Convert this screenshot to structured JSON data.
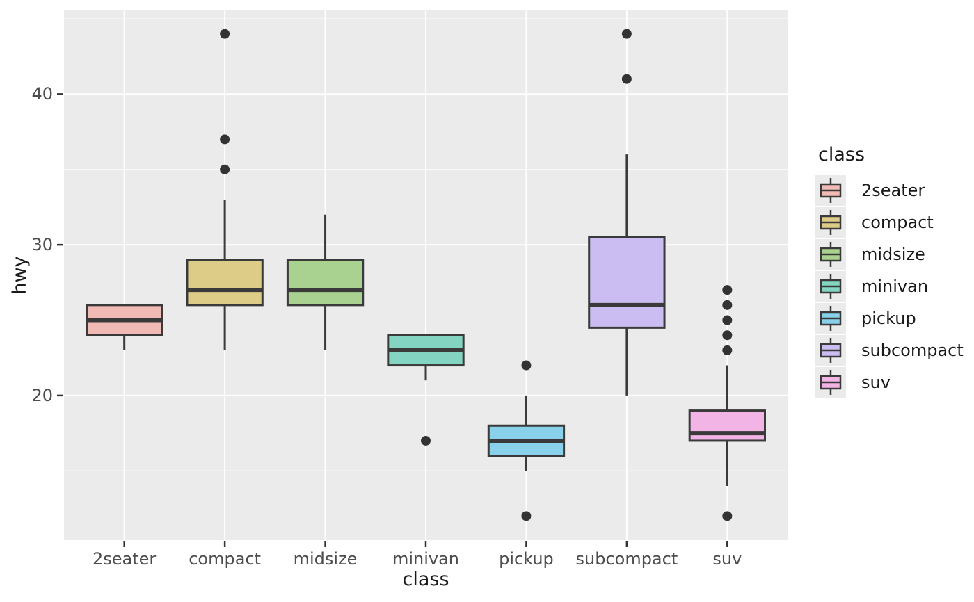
{
  "chart_data": {
    "type": "boxplot",
    "title": "",
    "xlabel": "class",
    "ylabel": "hwy",
    "categories": [
      "2seater",
      "compact",
      "midsize",
      "minivan",
      "pickup",
      "subcompact",
      "suv"
    ],
    "series": [
      {
        "name": "2seater",
        "fill": "#F2BAB4",
        "whisker_low": 23,
        "q1": 24,
        "median": 25,
        "q3": 26,
        "whisker_high": 26,
        "outliers": []
      },
      {
        "name": "compact",
        "fill": "#DCCC88",
        "whisker_low": 23,
        "q1": 26,
        "median": 27,
        "q3": 29,
        "whisker_high": 33,
        "outliers": [
          35,
          37,
          44
        ]
      },
      {
        "name": "midsize",
        "fill": "#A9D290",
        "whisker_low": 23,
        "q1": 26,
        "median": 27,
        "q3": 29,
        "whisker_high": 32,
        "outliers": []
      },
      {
        "name": "minivan",
        "fill": "#83D5C1",
        "whisker_low": 21,
        "q1": 22,
        "median": 23,
        "q3": 24,
        "whisker_high": 24,
        "outliers": [
          17
        ]
      },
      {
        "name": "pickup",
        "fill": "#89D1EB",
        "whisker_low": 15,
        "q1": 16,
        "median": 17,
        "q3": 18,
        "whisker_high": 20,
        "outliers": [
          22,
          12
        ]
      },
      {
        "name": "subcompact",
        "fill": "#CBBDF2",
        "whisker_low": 20,
        "q1": 24.5,
        "median": 26,
        "q3": 30.5,
        "whisker_high": 36,
        "outliers": [
          41,
          44
        ]
      },
      {
        "name": "suv",
        "fill": "#F2B4E4",
        "whisker_low": 14,
        "q1": 17,
        "median": 17.5,
        "q3": 19,
        "whisker_high": 22,
        "outliers": [
          27,
          26,
          25,
          24,
          23,
          12
        ]
      }
    ],
    "y_major_ticks": [
      20,
      30,
      40
    ],
    "y_major_tick_labels": [
      "20",
      "30",
      "40"
    ],
    "y_minor_gridlines": [
      15,
      25,
      35,
      45
    ],
    "ylim": [
      10.4,
      45.6
    ],
    "grid": "horizontal major+minor white, vertical major white at category centers",
    "legend": {
      "title": "class",
      "position": "right",
      "entries": [
        {
          "label": "2seater",
          "fill": "#F2BAB4"
        },
        {
          "label": "compact",
          "fill": "#DCCC88"
        },
        {
          "label": "midsize",
          "fill": "#A9D290"
        },
        {
          "label": "minivan",
          "fill": "#83D5C1"
        },
        {
          "label": "pickup",
          "fill": "#89D1EB"
        },
        {
          "label": "subcompact",
          "fill": "#CBBDF2"
        },
        {
          "label": "suv",
          "fill": "#F2B4E4"
        }
      ]
    }
  },
  "style": {
    "background": "#FFFFFF",
    "panel_bg": "#EBEBEB",
    "grid_color": "#FFFFFF",
    "box_border": "#3A3A3A",
    "median_color": "#3A3A3A",
    "whisker_color": "#3A3A3A",
    "outlier_color": "#333333",
    "tick_mark_color": "#333333",
    "tick_label_color": "#4D4D4D",
    "axis_title_color": "#1A1A1A",
    "legend_key_bg": "#EBEBEB"
  }
}
